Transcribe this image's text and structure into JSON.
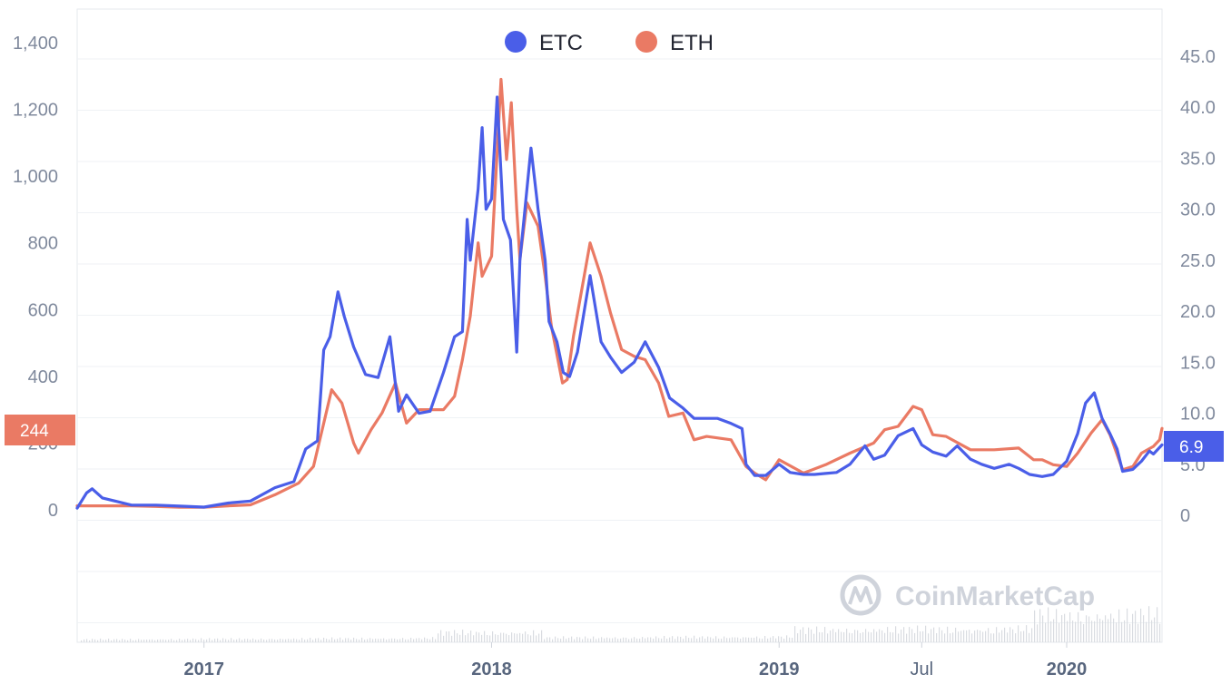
{
  "chart_data": {
    "type": "line",
    "legend_position": "top-center",
    "grid": true,
    "colors": {
      "ETC": "#4a5ee8",
      "ETH": "#ea7a64",
      "grid": "#eff2f5",
      "volume": "#d9dce1"
    },
    "left_axis": {
      "series": "ETH",
      "range": [
        0,
        1400
      ],
      "ticks": [
        "0",
        "200",
        "400",
        "600",
        "800",
        "1,000",
        "1,200",
        "1,400"
      ],
      "tick_values": [
        0,
        200,
        400,
        600,
        800,
        1000,
        1200,
        1400
      ]
    },
    "right_axis": {
      "series": "ETC",
      "range": [
        0,
        45
      ],
      "ticks": [
        "0",
        "5.0",
        "10.0",
        "15.0",
        "20.0",
        "25.0",
        "30.0",
        "35.0",
        "40.0",
        "45.0"
      ],
      "tick_values": [
        0,
        5,
        10,
        15,
        20,
        25,
        30,
        35,
        40,
        45
      ]
    },
    "x_axis": {
      "range": [
        "2016-07-24",
        "2020-05-01"
      ],
      "ticks": [
        {
          "label": "2017",
          "date": "2017-01-01",
          "bold": true
        },
        {
          "label": "2018",
          "date": "2018-01-01",
          "bold": true
        },
        {
          "label": "2019",
          "date": "2019-01-01",
          "bold": true
        },
        {
          "label": "Jul",
          "date": "2019-07-01",
          "bold": false
        },
        {
          "label": "2020",
          "date": "2020-01-01",
          "bold": true
        }
      ]
    },
    "series": [
      {
        "name": "ETC",
        "axis": "right",
        "points": [
          [
            "2016-07-24",
            0.7
          ],
          [
            "2016-08-05",
            2.2
          ],
          [
            "2016-08-12",
            2.6
          ],
          [
            "2016-08-25",
            1.7
          ],
          [
            "2016-09-10",
            1.4
          ],
          [
            "2016-10-01",
            1.0
          ],
          [
            "2016-11-01",
            1.0
          ],
          [
            "2016-12-01",
            0.9
          ],
          [
            "2017-01-01",
            0.8
          ],
          [
            "2017-02-01",
            1.2
          ],
          [
            "2017-03-01",
            1.4
          ],
          [
            "2017-04-01",
            2.7
          ],
          [
            "2017-04-25",
            3.3
          ],
          [
            "2017-05-10",
            6.5
          ],
          [
            "2017-05-25",
            7.3
          ],
          [
            "2017-06-02",
            16.2
          ],
          [
            "2017-06-10",
            17.5
          ],
          [
            "2017-06-20",
            21.9
          ],
          [
            "2017-06-28",
            19.5
          ],
          [
            "2017-07-10",
            16.5
          ],
          [
            "2017-07-25",
            13.8
          ],
          [
            "2017-08-10",
            13.5
          ],
          [
            "2017-08-25",
            17.5
          ],
          [
            "2017-09-05",
            10.2
          ],
          [
            "2017-09-15",
            11.8
          ],
          [
            "2017-10-01",
            10.0
          ],
          [
            "2017-10-15",
            10.2
          ],
          [
            "2017-11-01",
            14.0
          ],
          [
            "2017-11-15",
            17.5
          ],
          [
            "2017-11-25",
            18.0
          ],
          [
            "2017-12-01",
            29.0
          ],
          [
            "2017-12-05",
            25.0
          ],
          [
            "2017-12-15",
            32.0
          ],
          [
            "2017-12-20",
            38.0
          ],
          [
            "2017-12-25",
            30.0
          ],
          [
            "2018-01-01",
            31.0
          ],
          [
            "2018-01-08",
            41.0
          ],
          [
            "2018-01-16",
            29.0
          ],
          [
            "2018-01-25",
            27.0
          ],
          [
            "2018-02-02",
            16.0
          ],
          [
            "2018-02-06",
            25.0
          ],
          [
            "2018-02-20",
            36.0
          ],
          [
            "2018-03-01",
            30.0
          ],
          [
            "2018-03-10",
            25.0
          ],
          [
            "2018-03-15",
            19.0
          ],
          [
            "2018-03-25",
            17.0
          ],
          [
            "2018-04-02",
            14.0
          ],
          [
            "2018-04-10",
            13.6
          ],
          [
            "2018-04-20",
            16.0
          ],
          [
            "2018-05-06",
            23.5
          ],
          [
            "2018-05-20",
            17.0
          ],
          [
            "2018-06-01",
            15.5
          ],
          [
            "2018-06-15",
            14.0
          ],
          [
            "2018-07-01",
            15.0
          ],
          [
            "2018-07-15",
            17.0
          ],
          [
            "2018-08-01",
            14.5
          ],
          [
            "2018-08-15",
            11.5
          ],
          [
            "2018-09-01",
            10.5
          ],
          [
            "2018-09-15",
            9.5
          ],
          [
            "2018-10-01",
            9.5
          ],
          [
            "2018-10-15",
            9.5
          ],
          [
            "2018-11-01",
            9.0
          ],
          [
            "2018-11-15",
            8.5
          ],
          [
            "2018-11-20",
            5.0
          ],
          [
            "2018-12-01",
            3.9
          ],
          [
            "2018-12-15",
            3.9
          ],
          [
            "2019-01-01",
            5.0
          ],
          [
            "2019-01-15",
            4.2
          ],
          [
            "2019-02-01",
            4.0
          ],
          [
            "2019-02-15",
            4.0
          ],
          [
            "2019-03-01",
            4.1
          ],
          [
            "2019-03-15",
            4.2
          ],
          [
            "2019-04-01",
            5.0
          ],
          [
            "2019-04-20",
            6.8
          ],
          [
            "2019-05-01",
            5.5
          ],
          [
            "2019-05-15",
            5.9
          ],
          [
            "2019-06-01",
            7.8
          ],
          [
            "2019-06-20",
            8.5
          ],
          [
            "2019-07-01",
            6.9
          ],
          [
            "2019-07-15",
            6.2
          ],
          [
            "2019-08-01",
            5.8
          ],
          [
            "2019-08-15",
            6.8
          ],
          [
            "2019-09-01",
            5.5
          ],
          [
            "2019-09-15",
            5.0
          ],
          [
            "2019-10-01",
            4.6
          ],
          [
            "2019-10-20",
            5.0
          ],
          [
            "2019-11-01",
            4.6
          ],
          [
            "2019-11-15",
            4.0
          ],
          [
            "2019-12-01",
            3.8
          ],
          [
            "2019-12-15",
            4.0
          ],
          [
            "2020-01-01",
            5.3
          ],
          [
            "2020-01-15",
            8.0
          ],
          [
            "2020-01-25",
            11.0
          ],
          [
            "2020-02-05",
            12.0
          ],
          [
            "2020-02-15",
            9.5
          ],
          [
            "2020-02-25",
            8.0
          ],
          [
            "2020-03-05",
            6.5
          ],
          [
            "2020-03-12",
            4.3
          ],
          [
            "2020-03-25",
            4.5
          ],
          [
            "2020-04-05",
            5.3
          ],
          [
            "2020-04-15",
            6.3
          ],
          [
            "2020-04-20",
            6.0
          ],
          [
            "2020-05-01",
            6.9
          ]
        ]
      },
      {
        "name": "ETH",
        "axis": "left",
        "points": [
          [
            "2016-07-24",
            12
          ],
          [
            "2016-09-01",
            12
          ],
          [
            "2016-10-01",
            12
          ],
          [
            "2016-11-01",
            10
          ],
          [
            "2016-12-01",
            8
          ],
          [
            "2017-01-01",
            8
          ],
          [
            "2017-02-01",
            12
          ],
          [
            "2017-03-01",
            15
          ],
          [
            "2017-04-01",
            45
          ],
          [
            "2017-05-01",
            80
          ],
          [
            "2017-05-20",
            130
          ],
          [
            "2017-06-01",
            250
          ],
          [
            "2017-06-12",
            360
          ],
          [
            "2017-06-25",
            320
          ],
          [
            "2017-07-10",
            200
          ],
          [
            "2017-07-16",
            170
          ],
          [
            "2017-08-01",
            240
          ],
          [
            "2017-08-15",
            290
          ],
          [
            "2017-09-01",
            380
          ],
          [
            "2017-09-15",
            260
          ],
          [
            "2017-10-01",
            300
          ],
          [
            "2017-10-20",
            300
          ],
          [
            "2017-11-01",
            300
          ],
          [
            "2017-11-15",
            340
          ],
          [
            "2017-11-25",
            450
          ],
          [
            "2017-12-05",
            580
          ],
          [
            "2017-12-15",
            800
          ],
          [
            "2017-12-20",
            700
          ],
          [
            "2018-01-01",
            760
          ],
          [
            "2018-01-13",
            1290
          ],
          [
            "2018-01-20",
            1050
          ],
          [
            "2018-01-26",
            1220
          ],
          [
            "2018-02-02",
            900
          ],
          [
            "2018-02-06",
            750
          ],
          [
            "2018-02-15",
            920
          ],
          [
            "2018-03-01",
            850
          ],
          [
            "2018-03-10",
            700
          ],
          [
            "2018-03-18",
            550
          ],
          [
            "2018-04-01",
            380
          ],
          [
            "2018-04-07",
            390
          ],
          [
            "2018-04-15",
            520
          ],
          [
            "2018-05-06",
            800
          ],
          [
            "2018-05-20",
            700
          ],
          [
            "2018-06-01",
            590
          ],
          [
            "2018-06-15",
            480
          ],
          [
            "2018-07-01",
            460
          ],
          [
            "2018-07-15",
            450
          ],
          [
            "2018-08-01",
            380
          ],
          [
            "2018-08-14",
            280
          ],
          [
            "2018-09-01",
            290
          ],
          [
            "2018-09-15",
            210
          ],
          [
            "2018-10-01",
            220
          ],
          [
            "2018-11-01",
            210
          ],
          [
            "2018-11-20",
            130
          ],
          [
            "2018-12-01",
            110
          ],
          [
            "2018-12-15",
            90
          ],
          [
            "2019-01-01",
            150
          ],
          [
            "2019-02-01",
            110
          ],
          [
            "2019-03-01",
            135
          ],
          [
            "2019-04-01",
            170
          ],
          [
            "2019-05-01",
            200
          ],
          [
            "2019-05-15",
            240
          ],
          [
            "2019-06-01",
            250
          ],
          [
            "2019-06-20",
            310
          ],
          [
            "2019-07-01",
            300
          ],
          [
            "2019-07-15",
            225
          ],
          [
            "2019-08-01",
            220
          ],
          [
            "2019-09-01",
            180
          ],
          [
            "2019-10-01",
            180
          ],
          [
            "2019-11-01",
            185
          ],
          [
            "2019-11-20",
            150
          ],
          [
            "2019-12-01",
            150
          ],
          [
            "2019-12-15",
            135
          ],
          [
            "2020-01-01",
            130
          ],
          [
            "2020-01-15",
            170
          ],
          [
            "2020-02-01",
            230
          ],
          [
            "2020-02-15",
            270
          ],
          [
            "2020-02-25",
            225
          ],
          [
            "2020-03-12",
            120
          ],
          [
            "2020-03-25",
            130
          ],
          [
            "2020-04-05",
            170
          ],
          [
            "2020-04-20",
            190
          ],
          [
            "2020-04-28",
            210
          ],
          [
            "2020-05-01",
            244
          ]
        ]
      }
    ],
    "current_values": {
      "ETH": "244",
      "ETC": "6.9"
    }
  },
  "legend": {
    "etc_label": "ETC",
    "eth_label": "ETH"
  },
  "watermark": {
    "text": "CoinMarketCap",
    "icon": "coinmarketcap-logo-icon"
  }
}
